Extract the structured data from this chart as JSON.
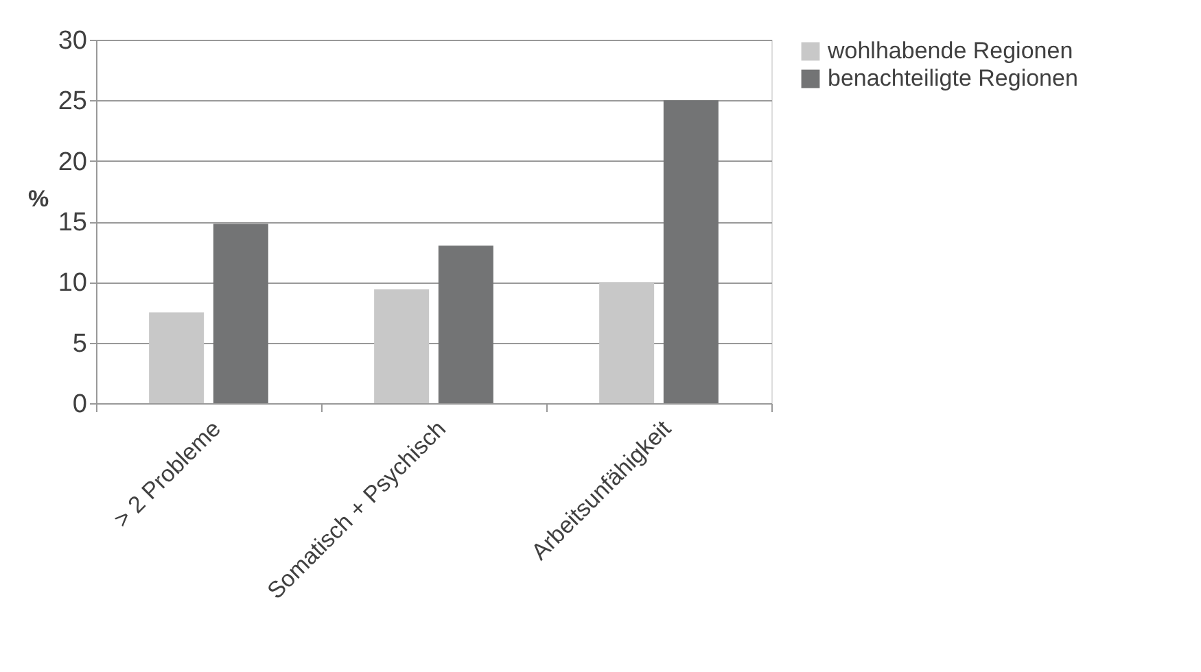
{
  "chart_data": {
    "type": "bar",
    "ylabel": "%",
    "categories": [
      "> 2 Probleme",
      "Somatisch + Psychisch",
      "Arbeitsunfähigkeit"
    ],
    "series": [
      {
        "name": "wohlhabende Regionen",
        "color": "#c8c8c8",
        "values": [
          7.5,
          9.4,
          10
        ]
      },
      {
        "name": "benachteiligte Regionen",
        "color": "#737475",
        "values": [
          14.8,
          13,
          25
        ]
      }
    ],
    "ylim": [
      0,
      30
    ],
    "yticks": [
      0,
      5,
      10,
      15,
      20,
      25,
      30
    ],
    "grid": "y",
    "legend": "right"
  }
}
